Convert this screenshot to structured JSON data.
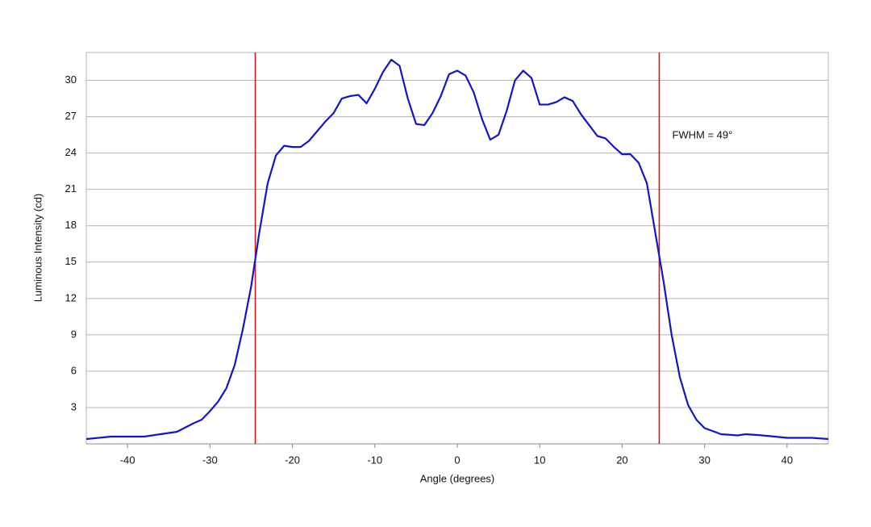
{
  "chart_data": {
    "type": "line",
    "xlabel": "Angle (degrees)",
    "ylabel": "Luminous Intensity (cd)",
    "annotation": "FWHM = 49°",
    "x": [
      -45,
      -42,
      -38,
      -36,
      -34,
      -32,
      -31,
      -30,
      -29,
      -28,
      -27,
      -26,
      -25,
      -24,
      -23,
      -22,
      -21,
      -20,
      -19,
      -18,
      -17,
      -16,
      -15,
      -14,
      -13,
      -12,
      -11,
      -10,
      -9,
      -8,
      -7,
      -6,
      -5,
      -4,
      -3,
      -2,
      -1,
      0,
      1,
      2,
      3,
      4,
      5,
      6,
      7,
      8,
      9,
      10,
      11,
      12,
      13,
      14,
      15,
      16,
      17,
      18,
      19,
      20,
      21,
      22,
      23,
      24,
      25,
      26,
      27,
      28,
      29,
      30,
      32,
      34,
      35,
      37,
      40,
      43,
      45
    ],
    "series": [
      {
        "color": "#1414c8",
        "values": [
          0.4,
          0.6,
          0.6,
          0.8,
          1.0,
          1.7,
          2.0,
          2.7,
          3.5,
          4.6,
          6.5,
          9.5,
          13,
          17.5,
          21.5,
          23.8,
          24.6,
          24.5,
          24.5,
          25,
          25.8,
          26.6,
          27.3,
          28.5,
          28.7,
          28.8,
          28.1,
          29.3,
          30.7,
          31.7,
          31.2,
          28.5,
          26.4,
          26.3,
          27.3,
          28.7,
          30.5,
          30.8,
          30.4,
          29,
          26.8,
          25.1,
          25.5,
          27.5,
          30,
          30.8,
          30.2,
          28,
          28,
          28.2,
          28.6,
          28.3,
          27.2,
          26.3,
          25.4,
          25.2,
          24.5,
          23.9,
          23.9,
          23.2,
          21.5,
          17.5,
          13.5,
          9,
          5.5,
          3.2,
          2,
          1.3,
          0.8,
          0.7,
          0.8,
          0.7,
          0.5,
          0.5,
          0.4
        ]
      }
    ],
    "vlines": [
      -24.5,
      24.5
    ],
    "vline_color": "#cc1a1a",
    "xlim": [
      -45,
      45
    ],
    "xticks": [
      -40,
      -30,
      -20,
      -10,
      0,
      10,
      20,
      30,
      40
    ],
    "ylim": [
      0,
      32.3
    ],
    "yticks": [
      3,
      6,
      9,
      12,
      15,
      18,
      21,
      24,
      27,
      30
    ],
    "grid": true
  }
}
